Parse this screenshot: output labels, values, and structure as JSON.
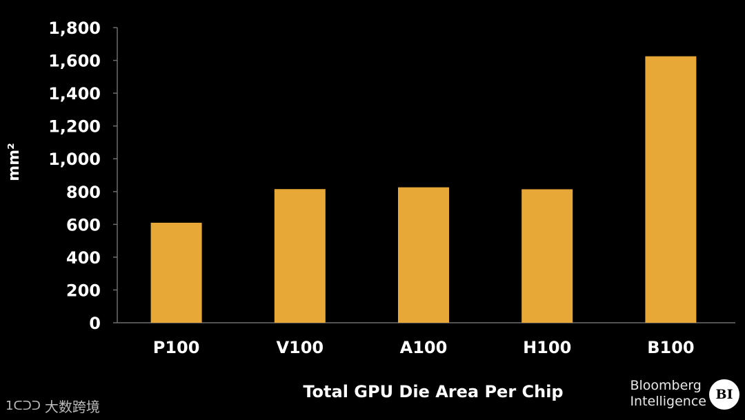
{
  "chart_data": {
    "type": "bar",
    "categories": [
      "P100",
      "V100",
      "A100",
      "H100",
      "B100"
    ],
    "values": [
      610,
      815,
      826,
      814,
      1625
    ],
    "ylabel": "mm²",
    "xlabel": "Total GPU Die Area Per Chip",
    "ylim": [
      0,
      1800
    ],
    "yticks": [
      "0",
      "200",
      "400",
      "600",
      "800",
      "1,000",
      "1,200",
      "1,400",
      "1,600",
      "1,800"
    ],
    "bar_color": "#E8A838",
    "background": "#000000",
    "grid": false,
    "legend": "none"
  },
  "branding": {
    "line1": "Bloomberg",
    "line2": "Intelligence",
    "logo": "BI"
  },
  "watermark": {
    "icon": "watermark-logo-icon",
    "mark": "1ᑕᑐᑐ",
    "text": "大数跨境"
  }
}
